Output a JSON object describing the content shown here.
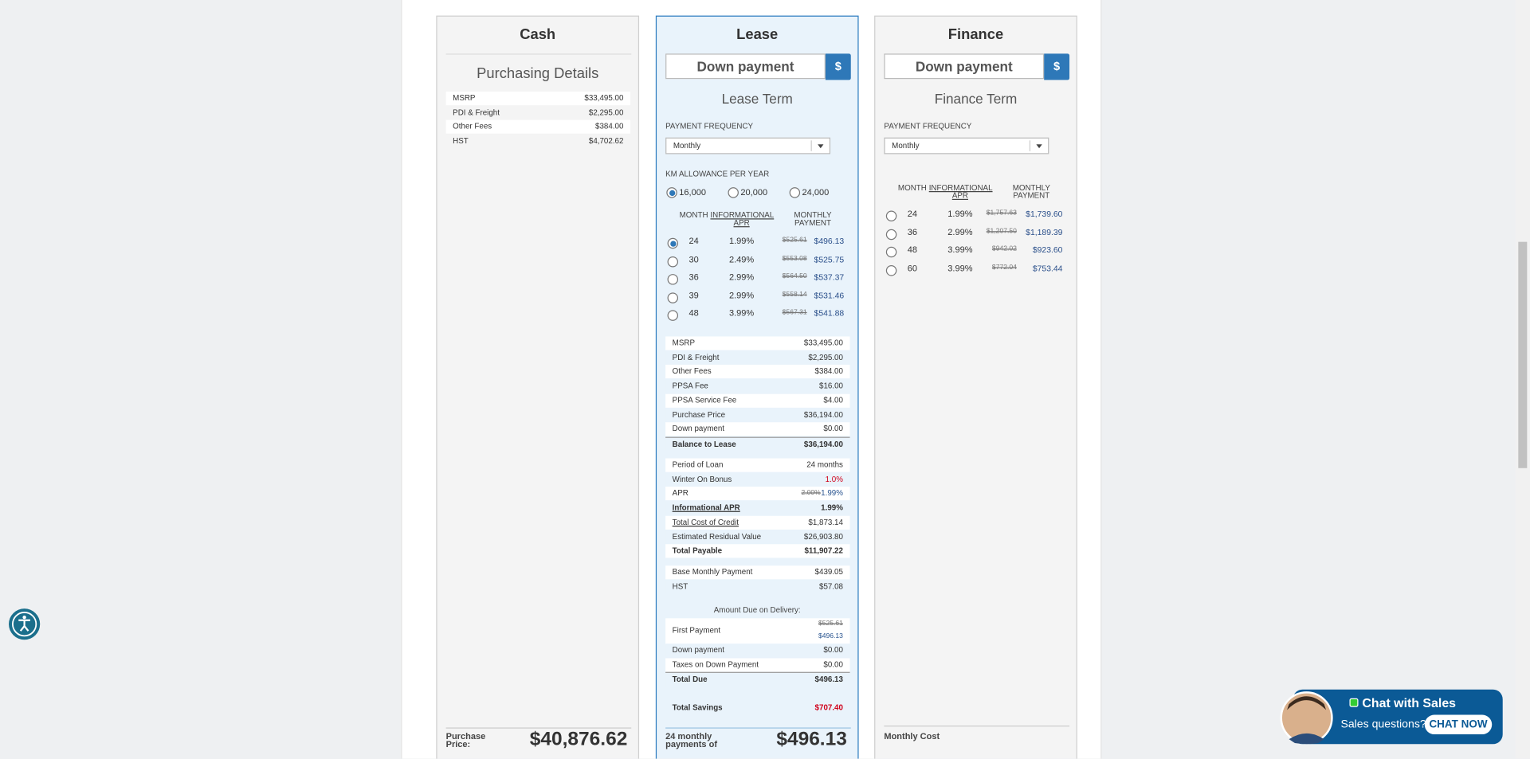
{
  "cash": {
    "title": "Cash",
    "subtitle": "Purchasing Details",
    "rows": [
      [
        "MSRP",
        "$33,495.00"
      ],
      [
        "PDI & Freight",
        "$2,295.00"
      ],
      [
        "Other Fees",
        "$384.00"
      ],
      [
        "HST",
        "$4,702.62"
      ]
    ],
    "footer_label": "Purchase Price:",
    "footer_value": "$40,876.62"
  },
  "lease": {
    "title": "Lease",
    "down_payment": "Down payment",
    "currency": "$",
    "term_title": "Lease Term",
    "frequency_label": "PAYMENT FREQUENCY",
    "frequency": "Monthly",
    "km_label": "KM ALLOWANCE PER YEAR",
    "km_options": [
      "16,000",
      "20,000",
      "24,000"
    ],
    "columns": [
      "MONTH",
      "INFORMATIONAL APR",
      "MONTHLY PAYMENT"
    ],
    "terms": [
      [
        "24",
        "1.99%",
        "$525.61",
        "$496.13"
      ],
      [
        "30",
        "2.49%",
        "$553.08",
        "$525.75"
      ],
      [
        "36",
        "2.99%",
        "$564.50",
        "$537.37"
      ],
      [
        "39",
        "2.99%",
        "$558.14",
        "$531.46"
      ],
      [
        "48",
        "3.99%",
        "$567.31",
        "$541.88"
      ]
    ],
    "details": [
      [
        [
          "MSRP",
          "$33,495.00"
        ],
        [
          "PDI & Freight",
          "$2,295.00"
        ],
        [
          "Other Fees",
          "$384.00"
        ],
        [
          "PPSA Fee",
          "$16.00"
        ],
        [
          "PPSA Service Fee",
          "$4.00"
        ],
        [
          "Purchase Price",
          "$36,194.00"
        ],
        [
          "Down payment",
          "$0.00"
        ],
        [
          "Balance to Lease",
          "$36,194.00"
        ]
      ],
      [
        [
          "Period of Loan",
          "24 months"
        ],
        [
          "Winter On Bonus",
          "1.0%"
        ],
        [
          "APR",
          "2.00%",
          "1.99%"
        ],
        [
          "Informational APR",
          "1.99%"
        ],
        [
          "Total Cost of Credit",
          "$1,873.14"
        ],
        [
          "Estimated Residual Value",
          "$26,903.80"
        ],
        [
          "Total Payable",
          "$11,907.22"
        ]
      ],
      [
        [
          "Base Monthly Payment",
          "$439.05"
        ],
        [
          "HST",
          "$57.08"
        ]
      ]
    ],
    "due_title": "Amount Due on Delivery:",
    "due": [
      [
        "First Payment",
        "$525.61",
        "$496.13"
      ],
      [
        "Down payment",
        "$0.00"
      ],
      [
        "Taxes on Down Payment",
        "$0.00"
      ],
      [
        "Total Due",
        "$496.13"
      ]
    ],
    "savings": [
      "Total Savings",
      "$707.40"
    ],
    "footer_label": "24 monthly payments of",
    "footer_value": "$496.13"
  },
  "finance": {
    "title": "Finance",
    "down_payment": "Down payment",
    "currency": "$",
    "term_title": "Finance Term",
    "frequency_label": "PAYMENT FREQUENCY",
    "frequency": "Monthly",
    "columns": [
      "MONTH",
      "INFORMATIONAL APR",
      "MONTHLY PAYMENT"
    ],
    "terms": [
      [
        "24",
        "1.99%",
        "$1,757.63",
        "$1,739.60"
      ],
      [
        "36",
        "2.99%",
        "$1,207.50",
        "$1,189.39"
      ],
      [
        "48",
        "3.99%",
        "$942.02",
        "$923.60"
      ],
      [
        "60",
        "3.99%",
        "$772.04",
        "$753.44"
      ]
    ],
    "footer_label": "Monthly Cost"
  },
  "chat": {
    "title": "Chat with Sales",
    "question": "Sales questions?",
    "button": "CHAT NOW"
  }
}
